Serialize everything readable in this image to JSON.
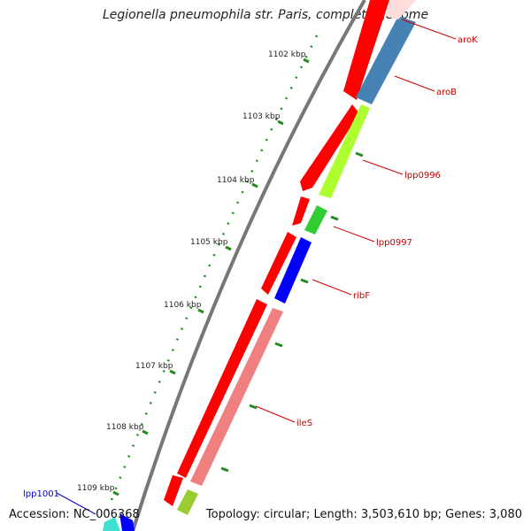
{
  "title": "Legionella pneumophila str. Paris, complete genome",
  "accession": "Accession: NC_006368",
  "topology": "Topology: circular; Length: 3,503,610 bp; Genes: 3,080",
  "scale_labels": [
    "1102 kbp",
    "1103 kbp",
    "1104 kbp",
    "1105 kbp",
    "1106 kbp",
    "1107 kbp",
    "1108 kbp",
    "1109 kbp"
  ],
  "gene_labels": [
    {
      "text": "aroK",
      "color": "#cc0000"
    },
    {
      "text": "aroB",
      "color": "#cc0000"
    },
    {
      "text": "lpp0996",
      "color": "#cc0000"
    },
    {
      "text": "lpp0997",
      "color": "#cc0000"
    },
    {
      "text": "ribF",
      "color": "#cc0000"
    },
    {
      "text": "ileS",
      "color": "#cc0000"
    },
    {
      "text": "lpp1001",
      "color": "#0000cc"
    }
  ],
  "colors": {
    "forward_track": "#ff0000",
    "aroB": "#4682b4",
    "lpp0996": "#adff2f",
    "lpp0997": "#32cd32",
    "ribF": "#0000ff",
    "ileS": "#f08080",
    "tick": "#228b22",
    "backbone": "#777777"
  }
}
